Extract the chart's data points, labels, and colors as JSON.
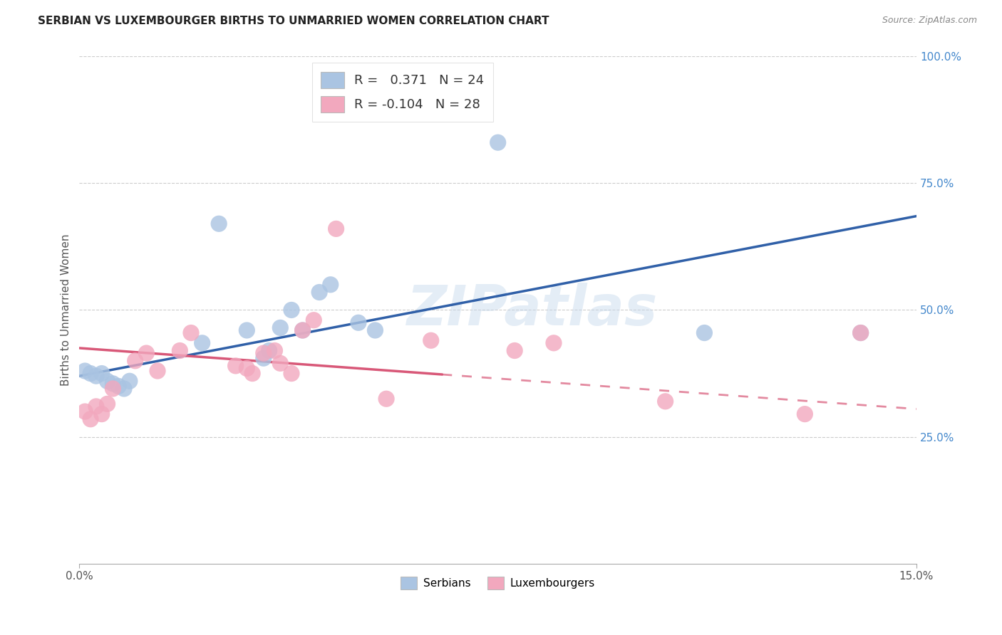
{
  "title": "SERBIAN VS LUXEMBOURGER BIRTHS TO UNMARRIED WOMEN CORRELATION CHART",
  "source": "Source: ZipAtlas.com",
  "ylabel": "Births to Unmarried Women",
  "xmin": 0.0,
  "xmax": 0.15,
  "ymin": 0.0,
  "ymax": 1.0,
  "xticks": [
    0.0,
    0.15
  ],
  "xtick_labels": [
    "0.0%",
    "15.0%"
  ],
  "yticks_right": [
    0.25,
    0.5,
    0.75,
    1.0
  ],
  "ytick_right_labels": [
    "25.0%",
    "50.0%",
    "75.0%",
    "100.0%"
  ],
  "legend_R_serbian": "0.371",
  "legend_N_serbian": "24",
  "legend_R_luxembourger": "-0.104",
  "legend_N_luxembourger": "28",
  "serbian_color": "#aac4e2",
  "luxembourger_color": "#f2a8be",
  "trend_serbian_color": "#3060a8",
  "trend_luxembourger_color": "#d85878",
  "watermark": "ZIPatlas",
  "serbian_x": [
    0.001,
    0.002,
    0.003,
    0.004,
    0.005,
    0.006,
    0.007,
    0.008,
    0.009,
    0.022,
    0.025,
    0.03,
    0.033,
    0.034,
    0.036,
    0.038,
    0.04,
    0.043,
    0.045,
    0.05,
    0.053,
    0.075,
    0.112,
    0.14
  ],
  "serbian_y": [
    0.38,
    0.375,
    0.37,
    0.375,
    0.36,
    0.355,
    0.35,
    0.345,
    0.36,
    0.435,
    0.67,
    0.46,
    0.405,
    0.42,
    0.465,
    0.5,
    0.46,
    0.535,
    0.55,
    0.475,
    0.46,
    0.83,
    0.455,
    0.455
  ],
  "luxembourger_x": [
    0.001,
    0.002,
    0.003,
    0.004,
    0.005,
    0.006,
    0.01,
    0.012,
    0.014,
    0.018,
    0.02,
    0.028,
    0.03,
    0.031,
    0.033,
    0.035,
    0.036,
    0.038,
    0.04,
    0.042,
    0.046,
    0.055,
    0.063,
    0.078,
    0.085,
    0.105,
    0.13,
    0.14
  ],
  "luxembourger_y": [
    0.3,
    0.285,
    0.31,
    0.295,
    0.315,
    0.345,
    0.4,
    0.415,
    0.38,
    0.42,
    0.455,
    0.39,
    0.385,
    0.375,
    0.415,
    0.42,
    0.395,
    0.375,
    0.46,
    0.48,
    0.66,
    0.325,
    0.44,
    0.42,
    0.435,
    0.32,
    0.295,
    0.455
  ],
  "trend_serbian_x0": 0.0,
  "trend_serbian_y0": 0.37,
  "trend_serbian_x1": 0.15,
  "trend_serbian_y1": 0.685,
  "trend_lux_x0": 0.0,
  "trend_lux_y0": 0.425,
  "trend_lux_x1": 0.15,
  "trend_lux_y1": 0.305,
  "trend_lux_solid_end": 0.065,
  "trend_lux_dash_start": 0.065
}
